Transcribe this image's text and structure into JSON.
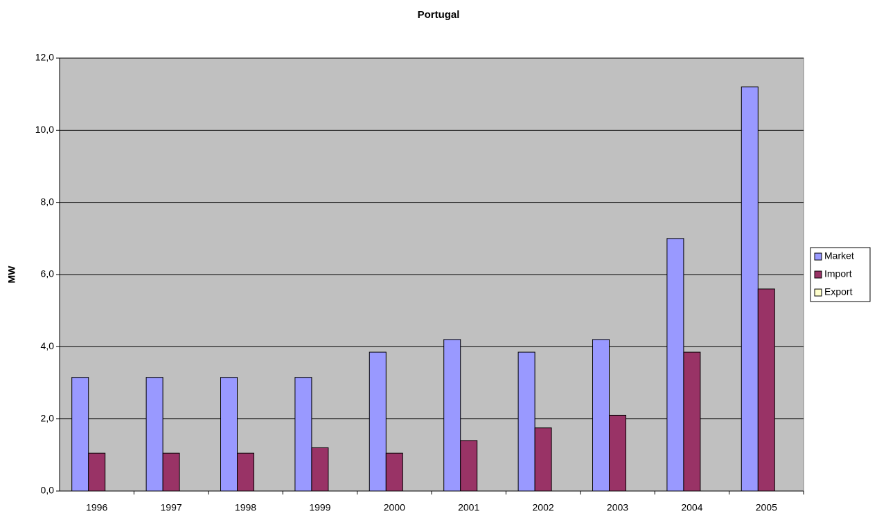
{
  "chart_data": {
    "type": "bar",
    "title": "Portugal",
    "y_label": "MW",
    "categories": [
      "1996",
      "1997",
      "1998",
      "1999",
      "2000",
      "2001",
      "2002",
      "2003",
      "2004",
      "2005"
    ],
    "series": [
      {
        "name": "Market",
        "color": "#9999ff",
        "values": [
          3.15,
          3.15,
          3.15,
          3.15,
          3.85,
          4.2,
          3.85,
          4.2,
          7.0,
          11.2
        ]
      },
      {
        "name": "Import",
        "color": "#993366",
        "values": [
          1.05,
          1.05,
          1.05,
          1.2,
          1.05,
          1.4,
          1.75,
          2.1,
          3.85,
          5.6
        ]
      },
      {
        "name": "Export",
        "color": "#ffffcc",
        "values": [
          0,
          0,
          0,
          0,
          0,
          0,
          0,
          0,
          0,
          0
        ]
      }
    ],
    "ylim": [
      0,
      12
    ],
    "yticks": [
      {
        "value": 0,
        "label": "0,0"
      },
      {
        "value": 2,
        "label": "2,0"
      },
      {
        "value": 4,
        "label": "4,0"
      },
      {
        "value": 6,
        "label": "6,0"
      },
      {
        "value": 8,
        "label": "8,0"
      },
      {
        "value": 10,
        "label": "10,0"
      },
      {
        "value": 12,
        "label": "12,0"
      }
    ],
    "grid": true,
    "legend": "right"
  }
}
